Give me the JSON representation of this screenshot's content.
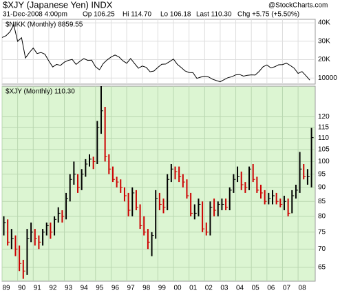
{
  "header": {
    "title": "$XJY (Japanese Yen) INDX",
    "date": "31-Dec-2008 4:00pm",
    "open": "Op 106.25",
    "high": "Hi 114.70",
    "low": "Lo 106.18",
    "last": "Last 110.30",
    "change": "Chg +5.75 (+5.50%)",
    "source": "@StockCharts.com"
  },
  "chart_data": [
    {
      "type": "line",
      "legend": "$NIKK (Monthly) 8859.55",
      "log_scale": false,
      "grid": true,
      "x": [
        1989,
        1989.25,
        1989.5,
        1989.75,
        1990,
        1990.25,
        1990.5,
        1990.75,
        1991,
        1991.25,
        1991.5,
        1991.75,
        1992,
        1992.25,
        1992.5,
        1992.75,
        1993,
        1993.25,
        1993.5,
        1993.75,
        1994,
        1994.25,
        1994.5,
        1994.75,
        1995,
        1995.25,
        1995.5,
        1995.75,
        1996,
        1996.25,
        1996.5,
        1996.75,
        1997,
        1997.25,
        1997.5,
        1997.75,
        1998,
        1998.25,
        1998.5,
        1998.75,
        1999,
        1999.25,
        1999.5,
        1999.75,
        2000,
        2000.25,
        2000.5,
        2000.75,
        2001,
        2001.25,
        2001.5,
        2001.75,
        2002,
        2002.25,
        2002.5,
        2002.75,
        2003,
        2003.25,
        2003.5,
        2003.75,
        2004,
        2004.25,
        2004.5,
        2004.75,
        2005,
        2005.25,
        2005.5,
        2005.75,
        2006,
        2006.25,
        2006.5,
        2006.75,
        2007,
        2007.25,
        2007.5,
        2007.75,
        2008,
        2008.25,
        2008.5,
        2008.75
      ],
      "xlim": [
        1989,
        2009.1
      ],
      "series": [
        {
          "name": "$NIKK",
          "color": "#000000",
          "values": [
            32000,
            33000,
            35000,
            38900,
            29900,
            31900,
            20900,
            23800,
            26300,
            23300,
            23900,
            22900,
            19300,
            16000,
            17400,
            16900,
            18600,
            19600,
            20100,
            17400,
            19100,
            20600,
            19600,
            19700,
            16100,
            14500,
            17900,
            19900,
            21400,
            22500,
            21500,
            19400,
            18000,
            20600,
            17900,
            15300,
            16500,
            15800,
            13400,
            13800,
            15800,
            17500,
            17600,
            18900,
            20300,
            17400,
            15700,
            13800,
            13000,
            12900,
            9800,
            10500,
            11000,
            10600,
            9400,
            8600,
            7970,
            9080,
            10200,
            10700,
            11700,
            11900,
            11000,
            11500,
            11700,
            11600,
            13600,
            16100,
            17100,
            15500,
            16100,
            17200,
            17300,
            18100,
            16800,
            15300,
            12500,
            13500,
            11300,
            8859.55
          ]
        }
      ],
      "ylim": [
        6700,
        41900
      ],
      "yticks": [
        {
          "value": 10000,
          "label": "10000"
        },
        {
          "value": 20000,
          "label": "20K"
        },
        {
          "value": 30000,
          "label": "30K"
        },
        {
          "value": 40000,
          "label": "40K"
        }
      ]
    },
    {
      "type": "ohlc",
      "legend": "$XJY (Monthly) 110.30",
      "log_scale": true,
      "grid": true,
      "x": [
        1989,
        1989.25,
        1989.5,
        1989.75,
        1990,
        1990.25,
        1990.5,
        1990.75,
        1991,
        1991.25,
        1991.5,
        1991.75,
        1992,
        1992.25,
        1992.5,
        1992.75,
        1993,
        1993.25,
        1993.5,
        1993.75,
        1994,
        1994.25,
        1994.5,
        1994.75,
        1995,
        1995.25,
        1995.5,
        1995.75,
        1996,
        1996.25,
        1996.5,
        1996.75,
        1997,
        1997.25,
        1997.5,
        1997.75,
        1998,
        1998.25,
        1998.5,
        1998.75,
        1999,
        1999.25,
        1999.5,
        1999.75,
        2000,
        2000.25,
        2000.5,
        2000.75,
        2001,
        2001.25,
        2001.5,
        2001.75,
        2002,
        2002.25,
        2002.5,
        2002.75,
        2003,
        2003.25,
        2003.5,
        2003.75,
        2004,
        2004.25,
        2004.5,
        2004.75,
        2005,
        2005.25,
        2005.5,
        2005.75,
        2006,
        2006.25,
        2006.5,
        2006.75,
        2007,
        2007.25,
        2007.5,
        2007.75,
        2008,
        2008.25,
        2008.5,
        2008.75
      ],
      "xlim": [
        1989,
        2009.1
      ],
      "xticks": [
        {
          "value": 1989,
          "label": "89"
        },
        {
          "value": 1990,
          "label": "90"
        },
        {
          "value": 1991,
          "label": "91"
        },
        {
          "value": 1992,
          "label": "92"
        },
        {
          "value": 1993,
          "label": "93"
        },
        {
          "value": 1994,
          "label": "94"
        },
        {
          "value": 1995,
          "label": "95"
        },
        {
          "value": 1996,
          "label": "96"
        },
        {
          "value": 1997,
          "label": "97"
        },
        {
          "value": 1998,
          "label": "98"
        },
        {
          "value": 1999,
          "label": "99"
        },
        {
          "value": 2000,
          "label": "00"
        },
        {
          "value": 2001,
          "label": "01"
        },
        {
          "value": 2002,
          "label": "02"
        },
        {
          "value": 2003,
          "label": "03"
        },
        {
          "value": 2004,
          "label": "04"
        },
        {
          "value": 2005,
          "label": "05"
        },
        {
          "value": 2006,
          "label": "06"
        },
        {
          "value": 2007,
          "label": "07"
        },
        {
          "value": 2008,
          "label": "08"
        }
      ],
      "up_color": "#000000",
      "down_color": "#cc0000",
      "series": [
        {
          "name": "$XJY",
          "values": [
            78,
            72,
            73,
            70,
            66,
            64,
            73,
            75,
            73,
            72,
            75,
            77,
            75,
            79,
            81,
            80,
            86,
            93,
            95,
            90,
            95,
            99,
            101,
            100,
            115,
            123,
            102,
            97,
            93,
            92,
            90,
            87,
            82,
            88,
            83,
            77,
            75,
            72,
            74,
            86,
            84,
            83,
            93,
            97,
            96,
            94,
            92,
            87,
            81,
            81,
            84,
            76,
            75,
            83,
            82,
            84,
            84,
            83,
            89,
            93,
            94,
            91,
            90,
            97,
            93,
            89,
            88,
            85,
            86,
            87,
            85,
            84,
            85,
            81,
            87,
            89,
            97,
            94,
            94,
            110.3
          ],
          "high": [
            80,
            79,
            76,
            74,
            71,
            67,
            76,
            78,
            76,
            74,
            76,
            78,
            78,
            80,
            83,
            82,
            88,
            95,
            100,
            95,
            97,
            101,
            103,
            102,
            118,
            136,
            125,
            103,
            98,
            94,
            93,
            90,
            88,
            90,
            89,
            84,
            80,
            76,
            75,
            89,
            88,
            86,
            95,
            99,
            98,
            98,
            95,
            93,
            88,
            84,
            86,
            85,
            78,
            85,
            86,
            85,
            86,
            86,
            90,
            95,
            98,
            96,
            92,
            98,
            99,
            94,
            91,
            89,
            88,
            89,
            88,
            86,
            87,
            86,
            89,
            91,
            104,
            99,
            97,
            114.7
          ],
          "low": [
            74,
            71,
            70,
            68,
            64,
            62,
            63,
            72,
            71,
            70,
            71,
            74,
            73,
            74,
            78,
            78,
            79,
            85,
            91,
            88,
            89,
            94,
            98,
            97,
            99,
            112,
            100,
            95,
            92,
            90,
            88,
            85,
            80,
            80,
            82,
            76,
            74,
            70,
            68,
            73,
            82,
            81,
            82,
            92,
            93,
            92,
            90,
            86,
            80,
            79,
            80,
            75,
            74,
            74,
            80,
            80,
            82,
            82,
            82,
            88,
            92,
            89,
            88,
            89,
            92,
            88,
            86,
            84,
            84,
            84,
            84,
            83,
            82,
            80,
            81,
            86,
            88,
            93,
            91,
            90
          ]
        }
      ],
      "ylim": [
        61.4,
        136
      ],
      "yticks": [
        65,
        70,
        75,
        80,
        85,
        90,
        95,
        100,
        105,
        110,
        115,
        120
      ]
    }
  ]
}
